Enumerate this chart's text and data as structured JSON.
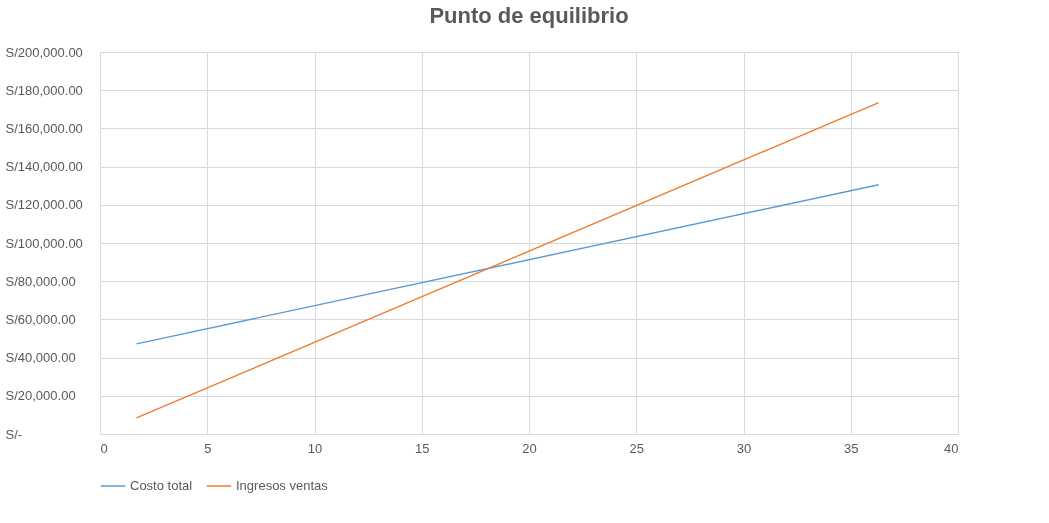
{
  "chart_data": {
    "type": "line",
    "title": "Punto de equilibrio",
    "x": [
      1.7,
      36.3
    ],
    "series": [
      {
        "name": "Costo total",
        "color": "#5b9bd5",
        "values": [
          47200,
          130500
        ]
      },
      {
        "name": "Ingresos ventas",
        "color": "#ed7d31",
        "values": [
          8400,
          173500
        ]
      }
    ],
    "xlim": [
      0,
      40
    ],
    "xticks": [
      0,
      5,
      10,
      15,
      20,
      25,
      30,
      35,
      40
    ],
    "ylim": [
      0,
      200000
    ],
    "yticks": [
      {
        "value": 0,
        "label": "S/-"
      },
      {
        "value": 20000,
        "label": "S/20,000.00"
      },
      {
        "value": 40000,
        "label": "S/40,000.00"
      },
      {
        "value": 60000,
        "label": "S/60,000.00"
      },
      {
        "value": 80000,
        "label": "S/80,000.00"
      },
      {
        "value": 100000,
        "label": "S/100,000.00"
      },
      {
        "value": 120000,
        "label": "S/120,000.00"
      },
      {
        "value": 140000,
        "label": "S/140,000.00"
      },
      {
        "value": 160000,
        "label": "S/160,000.00"
      },
      {
        "value": 180000,
        "label": "S/180,000.00"
      },
      {
        "value": 200000,
        "label": "S/200,000.00"
      }
    ],
    "grid": true,
    "legend": "bottom",
    "marker": "none",
    "line_style": "solid"
  }
}
